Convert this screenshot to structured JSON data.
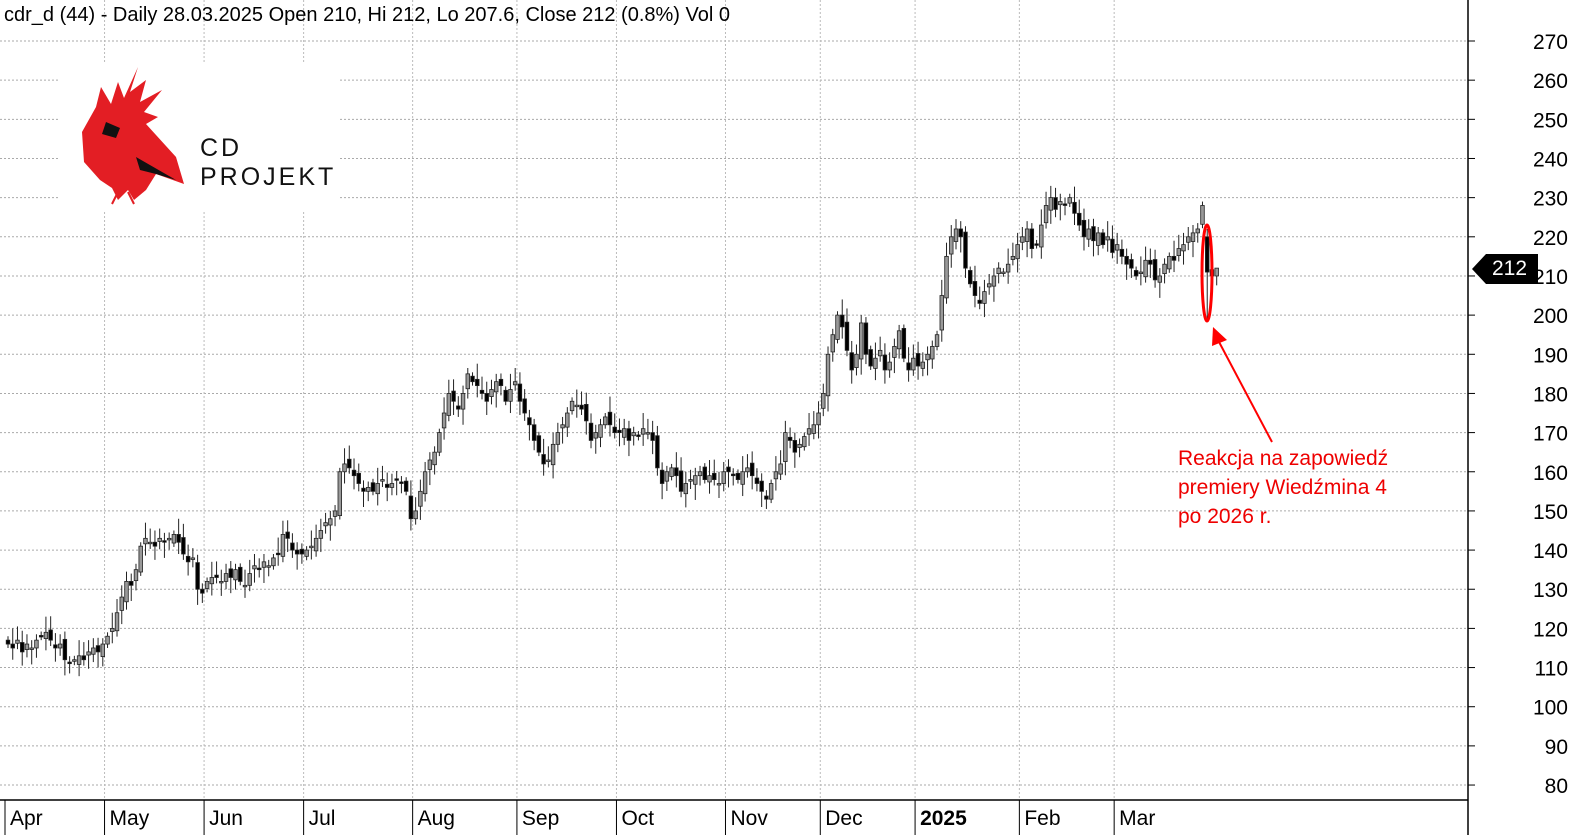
{
  "header": {
    "title": "cdr_d (44) - Daily 28.03.2025 Open 210, Hi 212, Lo 207.6, Close 212 (0.8%) Vol 0"
  },
  "logo": {
    "text": "CD PROJEKT"
  },
  "annotation": {
    "lines": [
      "Reakcja na zapowiedź",
      "premiery Wiedźmina 4",
      "po 2026 r."
    ],
    "color": "#ff0000"
  },
  "price_tag": "212",
  "chart_data": {
    "type": "candlestick",
    "title": "cdr_d (44) - Daily",
    "ylim": [
      75,
      275
    ],
    "yticks": [
      270,
      260,
      250,
      240,
      230,
      220,
      210,
      200,
      190,
      180,
      170,
      160,
      150,
      140,
      130,
      120,
      110,
      100,
      90,
      80
    ],
    "months": [
      {
        "label": "Apr",
        "index": 0
      },
      {
        "label": "May",
        "index": 21
      },
      {
        "label": "Jun",
        "index": 42
      },
      {
        "label": "Jul",
        "index": 63
      },
      {
        "label": "Aug",
        "index": 86
      },
      {
        "label": "Sep",
        "index": 108
      },
      {
        "label": "Oct",
        "index": 129
      },
      {
        "label": "Nov",
        "index": 152
      },
      {
        "label": "Dec",
        "index": 172
      },
      {
        "label": "2025",
        "index": 192,
        "bold": true
      },
      {
        "label": "Feb",
        "index": 214
      },
      {
        "label": "Mar",
        "index": 234
      }
    ],
    "closes": [
      116,
      115,
      117,
      114,
      116,
      115,
      117,
      118,
      119,
      117,
      115,
      116,
      112,
      111,
      112,
      113,
      112,
      114,
      115,
      114,
      116,
      118,
      120,
      124,
      128,
      132,
      131,
      135,
      141,
      143,
      142,
      141,
      143,
      142,
      143,
      144,
      142,
      139,
      137,
      138,
      130,
      129,
      132,
      133,
      133,
      132,
      134,
      133,
      135,
      132,
      131,
      134,
      136,
      135,
      137,
      136,
      138,
      139,
      144,
      143,
      140,
      139,
      139,
      140,
      141,
      143,
      145,
      147,
      148,
      150,
      160,
      162,
      161,
      159,
      157,
      155,
      156,
      155,
      157,
      158,
      156,
      157,
      158,
      157,
      155,
      148,
      150,
      155,
      160,
      163,
      165,
      170,
      175,
      180,
      178,
      176,
      180,
      185,
      183,
      182,
      180,
      178,
      181,
      183,
      182,
      178,
      181,
      183,
      178,
      175,
      172,
      168,
      165,
      162,
      163,
      167,
      170,
      172,
      175,
      178,
      177,
      176,
      173,
      168,
      170,
      172,
      174,
      172,
      170,
      170,
      171,
      168,
      170,
      169,
      171,
      170,
      168,
      161,
      157,
      160,
      161,
      159,
      155,
      157,
      158,
      159,
      160,
      158,
      159,
      158,
      157,
      160,
      160,
      159,
      158,
      160,
      161,
      159,
      157,
      155,
      153,
      157,
      160,
      162,
      170,
      168,
      165,
      167,
      169,
      171,
      172,
      175,
      180,
      190,
      195,
      200,
      197,
      191,
      186,
      190,
      198,
      190,
      187,
      189,
      191,
      186,
      188,
      192,
      196,
      189,
      186,
      189,
      187,
      188,
      190,
      192,
      195,
      205,
      215,
      220,
      222,
      220,
      212,
      208,
      205,
      203,
      206,
      208,
      210,
      212,
      211,
      213,
      215,
      218,
      220,
      222,
      217,
      218,
      223,
      228,
      230,
      227,
      229,
      228,
      230,
      226,
      223,
      220,
      222,
      219,
      221,
      218,
      220,
      216,
      218,
      215,
      213,
      212,
      210,
      211,
      214,
      213,
      209,
      210,
      213,
      215,
      214,
      217,
      218,
      220,
      221,
      222,
      228,
      211,
      210,
      212
    ],
    "annotated_candle": {
      "index": 253,
      "open": 220,
      "high": 222,
      "low": 199,
      "close": 211
    },
    "last_candle": {
      "date": "28.03.2025",
      "open": 210,
      "high": 212,
      "low": 207.6,
      "close": 212
    }
  }
}
